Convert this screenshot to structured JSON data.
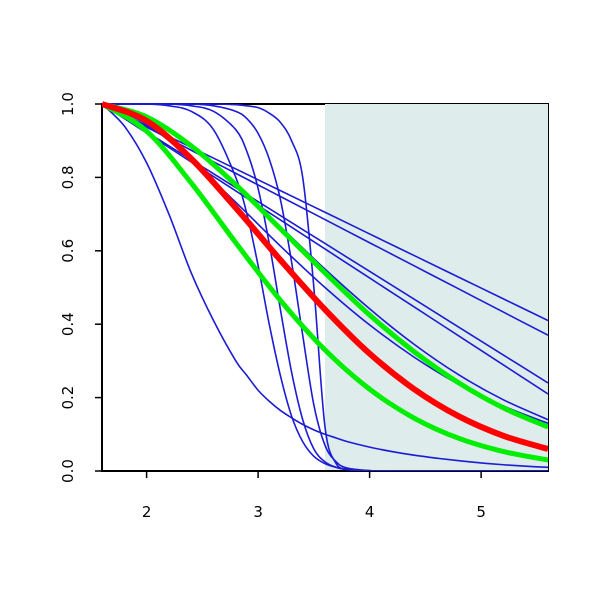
{
  "chart_data": {
    "type": "line",
    "xlim": [
      1.6,
      5.6
    ],
    "ylim": [
      0,
      1
    ],
    "xticks": [
      2,
      3,
      4,
      5
    ],
    "yticks": [
      {
        "value": 0,
        "label": "0.0"
      },
      {
        "value": 0.2,
        "label": "0.2"
      },
      {
        "value": 0.4,
        "label": "0.4"
      },
      {
        "value": 0.6,
        "label": "0.6"
      },
      {
        "value": 0.8,
        "label": "0.8"
      },
      {
        "value": 1,
        "label": "1.0"
      }
    ],
    "shaded_region": {
      "xlim": [
        3.6,
        5.6
      ],
      "ylim": [
        0,
        1
      ],
      "color": "#deeceb"
    },
    "series": [
      {
        "color": "#1c1cd4",
        "line_width": 1.6,
        "x": [
          1.6,
          1.8,
          2.0,
          2.2,
          2.4,
          2.6,
          2.8,
          2.9,
          3.0,
          3.1,
          3.2,
          3.3,
          3.4,
          3.5,
          3.6,
          3.7,
          3.8,
          4.0,
          4.2,
          4.4,
          4.6,
          4.8,
          5.0,
          5.2,
          5.4,
          5.6
        ],
        "values": [
          1,
          0.94,
          0.84,
          0.7,
          0.54,
          0.41,
          0.3,
          0.26,
          0.22,
          0.19,
          0.165,
          0.145,
          0.127,
          0.112,
          0.1,
          0.09,
          0.08,
          0.065,
          0.053,
          0.043,
          0.035,
          0.028,
          0.022,
          0.017,
          0.013,
          0.01
        ]
      },
      {
        "color": "#1c1cd4",
        "line_width": 1.6,
        "x": [
          1.6,
          1.8,
          2.0,
          2.2,
          2.4,
          2.6,
          2.8,
          2.9,
          3.0,
          3.1,
          3.2,
          3.3,
          3.4,
          3.5,
          3.6,
          3.7,
          3.8,
          4.0,
          4.2,
          4.4,
          4.6,
          4.8,
          5.0,
          5.2,
          5.4,
          5.6
        ],
        "values": [
          1,
          1,
          1,
          0.995,
          0.98,
          0.93,
          0.8,
          0.7,
          0.56,
          0.4,
          0.26,
          0.15,
          0.08,
          0.04,
          0.02,
          0.01,
          0.005,
          0.001,
          0,
          0,
          0,
          0,
          0,
          0,
          0,
          0
        ]
      },
      {
        "color": "#1c1cd4",
        "line_width": 1.6,
        "x": [
          1.6,
          1.8,
          2.0,
          2.2,
          2.4,
          2.6,
          2.8,
          2.9,
          3.0,
          3.1,
          3.2,
          3.3,
          3.4,
          3.5,
          3.6,
          3.7,
          3.8,
          4.0,
          4.2,
          4.4,
          4.6,
          4.8,
          5.0,
          5.2,
          5.4,
          5.6
        ],
        "values": [
          1,
          1,
          1,
          1,
          0.995,
          0.98,
          0.93,
          0.87,
          0.77,
          0.62,
          0.44,
          0.27,
          0.14,
          0.06,
          0.025,
          0.01,
          0.004,
          0.001,
          0,
          0,
          0,
          0,
          0,
          0,
          0,
          0
        ]
      },
      {
        "color": "#1c1cd4",
        "line_width": 1.6,
        "x": [
          1.6,
          1.8,
          2.0,
          2.2,
          2.4,
          2.6,
          2.8,
          2.9,
          3.0,
          3.1,
          3.2,
          3.3,
          3.4,
          3.5,
          3.6,
          3.7,
          3.8,
          4.0,
          4.2,
          4.4,
          4.6,
          4.8,
          5.0,
          5.2,
          5.4,
          5.6
        ],
        "values": [
          1,
          1,
          1,
          1,
          1,
          0.995,
          0.98,
          0.96,
          0.92,
          0.85,
          0.74,
          0.57,
          0.37,
          0.18,
          0.07,
          0.025,
          0.008,
          0.001,
          0,
          0,
          0,
          0,
          0,
          0,
          0,
          0
        ]
      },
      {
        "color": "#1c1cd4",
        "line_width": 1.6,
        "x": [
          1.6,
          1.8,
          2.0,
          2.2,
          2.4,
          2.6,
          2.8,
          2.9,
          3.0,
          3.1,
          3.2,
          3.3,
          3.4,
          3.5,
          3.6,
          3.7,
          3.8,
          4.0,
          4.2,
          4.4,
          4.6,
          4.8,
          5.0,
          5.2,
          5.4,
          5.6
        ],
        "values": [
          1,
          1,
          1,
          1,
          1,
          1,
          0.998,
          0.995,
          0.99,
          0.975,
          0.95,
          0.9,
          0.8,
          0.5,
          0.12,
          0.02,
          0.004,
          0,
          0,
          0,
          0,
          0,
          0,
          0,
          0,
          0
        ]
      },
      {
        "color": "#1c1cd4",
        "line_width": 1.6,
        "x": [
          1.6,
          2.0,
          2.4,
          2.8,
          3.2,
          3.6,
          4.0,
          4.4,
          4.8,
          5.2,
          5.6
        ],
        "values": [
          1,
          0.941,
          0.882,
          0.823,
          0.764,
          0.705,
          0.646,
          0.587,
          0.528,
          0.469,
          0.41
        ]
      },
      {
        "color": "#1c1cd4",
        "line_width": 1.6,
        "x": [
          1.6,
          2.0,
          2.4,
          2.8,
          3.2,
          3.6,
          4.0,
          4.4,
          4.8,
          5.2,
          5.6
        ],
        "values": [
          1,
          0.937,
          0.874,
          0.811,
          0.748,
          0.685,
          0.622,
          0.559,
          0.496,
          0.433,
          0.37
        ]
      },
      {
        "color": "#1c1cd4",
        "line_width": 1.6,
        "x": [
          1.6,
          2.0,
          2.4,
          2.8,
          3.2,
          3.6,
          4.0,
          4.4,
          4.8,
          5.2,
          5.6
        ],
        "values": [
          1,
          0.924,
          0.848,
          0.772,
          0.696,
          0.62,
          0.544,
          0.468,
          0.392,
          0.316,
          0.24
        ]
      },
      {
        "color": "#1c1cd4",
        "line_width": 1.6,
        "x": [
          1.6,
          2.0,
          2.4,
          2.8,
          3.2,
          3.6,
          4.0,
          4.4,
          4.8,
          5.2,
          5.6
        ],
        "values": [
          1,
          0.921,
          0.842,
          0.763,
          0.684,
          0.605,
          0.526,
          0.447,
          0.368,
          0.289,
          0.21
        ]
      },
      {
        "color": "#1c1cd4",
        "line_width": 1.6,
        "x": [
          1.6,
          2.0,
          2.4,
          2.8,
          3.2,
          3.6,
          4.0,
          4.4,
          4.8,
          5.2,
          5.6
        ],
        "values": [
          1,
          0.963,
          0.884,
          0.78,
          0.666,
          0.55,
          0.442,
          0.345,
          0.262,
          0.194,
          0.14
        ]
      },
      {
        "color": "#1c1cd4",
        "line_width": 1.6,
        "x": [
          1.6,
          2.0,
          2.4,
          2.8,
          3.2,
          3.6,
          4.0,
          4.4,
          4.8,
          5.2,
          5.6
        ],
        "values": [
          1,
          0.945,
          0.847,
          0.732,
          0.613,
          0.5,
          0.398,
          0.31,
          0.236,
          0.177,
          0.13
        ]
      },
      {
        "color": "#00ee00",
        "line_width": 5,
        "x": [
          1.6,
          2.0,
          2.4,
          2.8,
          3.2,
          3.6,
          4.0,
          4.4,
          4.8,
          5.2,
          5.6
        ],
        "values": [
          1,
          0.965,
          0.886,
          0.78,
          0.66,
          0.54,
          0.425,
          0.325,
          0.24,
          0.172,
          0.12
        ]
      },
      {
        "color": "#00ee00",
        "line_width": 5,
        "x": [
          1.6,
          2.0,
          2.4,
          2.8,
          3.2,
          3.6,
          4.0,
          4.4,
          4.8,
          5.2,
          5.6
        ],
        "values": [
          1,
          0.926,
          0.785,
          0.622,
          0.465,
          0.33,
          0.223,
          0.144,
          0.089,
          0.053,
          0.03
        ]
      },
      {
        "color": "#ff0000",
        "line_width": 6,
        "x": [
          1.6,
          2.0,
          2.4,
          2.8,
          3.2,
          3.6,
          4.0,
          4.4,
          4.8,
          5.2,
          5.6
        ],
        "values": [
          1,
          0.954,
          0.851,
          0.717,
          0.575,
          0.44,
          0.32,
          0.223,
          0.149,
          0.096,
          0.06
        ]
      }
    ]
  }
}
